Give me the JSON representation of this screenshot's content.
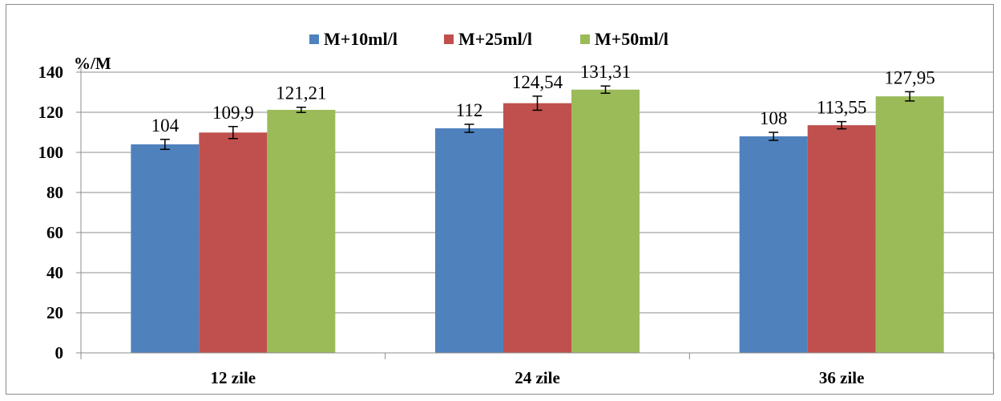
{
  "chart_data": {
    "type": "bar",
    "categories": [
      "12 zile",
      "24 zile",
      "36 zile"
    ],
    "series": [
      {
        "name": "M+10ml/l",
        "color": "#4f81bd",
        "values": [
          104,
          112,
          108
        ],
        "labels": [
          "104",
          "112",
          "108"
        ],
        "errors": [
          2.5,
          2.0,
          2.0
        ]
      },
      {
        "name": "M+25ml/l",
        "color": "#c0504d",
        "values": [
          109.9,
          124.54,
          113.55
        ],
        "labels": [
          "109,9",
          "124,54",
          "113,55"
        ],
        "errors": [
          3.0,
          3.5,
          1.8
        ]
      },
      {
        "name": "M+50ml/l",
        "color": "#9bbb59",
        "values": [
          121.21,
          131.31,
          127.95
        ],
        "labels": [
          "121,21",
          "131,31",
          "127,95"
        ],
        "errors": [
          1.3,
          1.8,
          2.3
        ]
      }
    ],
    "ylabel": "%/M",
    "ylim": [
      0,
      140
    ],
    "yticks": [
      0,
      20,
      40,
      60,
      80,
      100,
      120,
      140
    ],
    "grid": true,
    "legend": "top-center"
  }
}
